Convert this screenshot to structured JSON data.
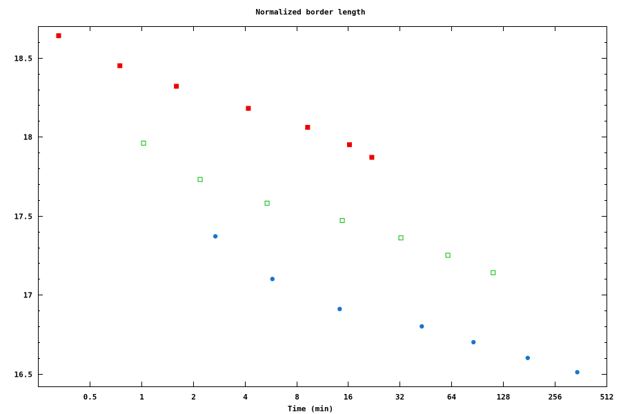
{
  "chart_data": {
    "type": "scatter",
    "title": "Normalized border length",
    "xlabel": "Time (min)",
    "ylabel": "",
    "xscale": "log2",
    "xlim": [
      0.25,
      512
    ],
    "ylim": [
      16.42,
      18.7
    ],
    "x_ticks": [
      {
        "value": 0.5,
        "label": "0.5"
      },
      {
        "value": 1,
        "label": "1"
      },
      {
        "value": 2,
        "label": "2"
      },
      {
        "value": 4,
        "label": "4"
      },
      {
        "value": 8,
        "label": "8"
      },
      {
        "value": 16,
        "label": "16"
      },
      {
        "value": 32,
        "label": "32"
      },
      {
        "value": 64,
        "label": "64"
      },
      {
        "value": 128,
        "label": "128"
      },
      {
        "value": 256,
        "label": "256"
      },
      {
        "value": 512,
        "label": "512"
      }
    ],
    "y_ticks": [
      {
        "value": 16.5,
        "label": "16.5"
      },
      {
        "value": 17,
        "label": "17"
      },
      {
        "value": 17.5,
        "label": "17.5"
      },
      {
        "value": 18,
        "label": "18"
      },
      {
        "value": 18.5,
        "label": "18.5"
      }
    ],
    "grid": false,
    "legend": "none",
    "series": [
      {
        "color": "#ee0000",
        "marker": "filled-square",
        "points": [
          [
            0.33,
            18.64
          ],
          [
            0.75,
            18.45
          ],
          [
            1.6,
            18.32
          ],
          [
            4.2,
            18.18
          ],
          [
            9.3,
            18.06
          ],
          [
            16.3,
            17.95
          ],
          [
            22,
            17.87
          ]
        ]
      },
      {
        "color": "#00bb00",
        "marker": "open-square",
        "points": [
          [
            1.03,
            17.96
          ],
          [
            2.2,
            17.73
          ],
          [
            5.4,
            17.58
          ],
          [
            14.8,
            17.47
          ],
          [
            32.5,
            17.36
          ],
          [
            61,
            17.25
          ],
          [
            112,
            17.14
          ]
        ]
      },
      {
        "color": "#1874cd",
        "marker": "filled-circle",
        "points": [
          [
            2.7,
            17.37
          ],
          [
            5.8,
            17.1
          ],
          [
            14.3,
            16.91
          ],
          [
            43,
            16.8
          ],
          [
            86,
            16.7
          ],
          [
            178,
            16.6
          ],
          [
            346,
            16.51
          ]
        ]
      }
    ]
  }
}
